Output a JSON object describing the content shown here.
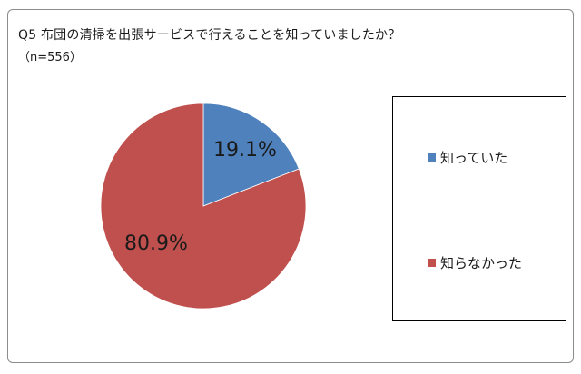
{
  "chart_data": {
    "type": "pie",
    "title": "Q5 布団の清掃を出張サービスで行えることを知っていましたか？",
    "subtitle": "（n=556）",
    "categories": [
      "知っていた",
      "知らなかった"
    ],
    "values": [
      19.1,
      80.9
    ],
    "data_labels": [
      "19.1%",
      "80.9%"
    ],
    "colors": [
      "#4f81bd",
      "#c0504d"
    ],
    "legend_position": "right",
    "start_angle_deg": 0,
    "direction": "clockwise"
  }
}
